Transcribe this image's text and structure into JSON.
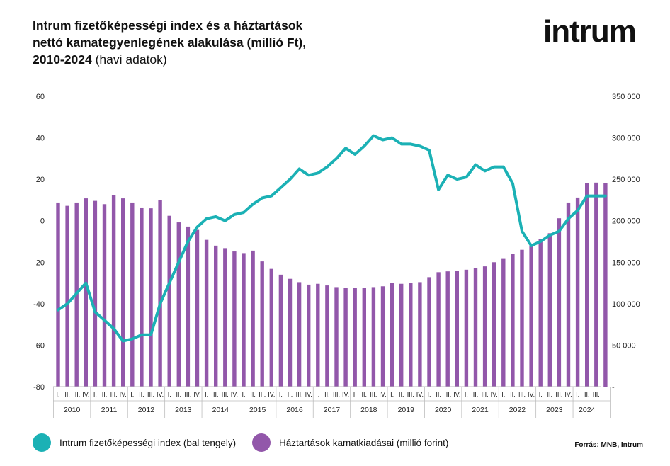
{
  "title": {
    "line1": "Intrum fizetőképességi index és a háztartások",
    "line2": "nettó kamategyenlegének alakulása (millió Ft),",
    "line3_bold": "2010-2024",
    "line3_normal": "(havi adatok)"
  },
  "logo": "intrum",
  "legend": {
    "line_label": "Intrum fizetőképességi index (bal tengely)",
    "bar_label": "Háztartások kamatkiadásai (millió forint)"
  },
  "source": "Forrás: MNB, Intrum",
  "colors": {
    "line": "#1bb1b5",
    "bar": "#9257aa",
    "axis": "#bdbdbd"
  },
  "chart_data": {
    "type": "bar+line",
    "left_axis": {
      "ylim": [
        -80,
        60
      ],
      "ticks": [
        "60",
        "40",
        "20",
        "0",
        "-20",
        "-40",
        "-60",
        "-80"
      ]
    },
    "right_axis": {
      "ylim": [
        0,
        350000
      ],
      "ticks": [
        "350 000",
        "300 000",
        "250 000",
        "200 000",
        "150 000",
        "100 000",
        "50 000",
        "-"
      ]
    },
    "quarters": [
      "I.",
      "II.",
      "III.",
      "IV."
    ],
    "years": [
      "2010",
      "2011",
      "2012",
      "2013",
      "2014",
      "2015",
      "2016",
      "2017",
      "2018",
      "2019",
      "2020",
      "2021",
      "2022",
      "2023",
      "2024"
    ],
    "x_labels_2024": [
      "I.",
      "II.",
      "III."
    ],
    "series": [
      {
        "name": "Háztartások kamatkiadásai (millió forint)",
        "axis": "right",
        "type": "bar",
        "values": [
          222000,
          218000,
          222000,
          227000,
          224000,
          220000,
          231000,
          227000,
          222000,
          216000,
          215000,
          225000,
          206000,
          198000,
          193000,
          189000,
          177000,
          170000,
          167000,
          163000,
          161000,
          164000,
          151000,
          142000,
          135000,
          130000,
          126000,
          123000,
          124000,
          122000,
          120000,
          119000,
          119000,
          119000,
          120000,
          121000,
          125000,
          124000,
          125000,
          126000,
          132000,
          138000,
          139000,
          140000,
          141000,
          143000,
          145000,
          150000,
          154000,
          160000,
          165000,
          170000,
          178000,
          185000,
          203000,
          222000,
          228000,
          245000,
          246000,
          245000
        ]
      },
      {
        "name": "Intrum fizetőképességi index (bal tengely)",
        "axis": "left",
        "type": "line",
        "values": [
          -43,
          -40,
          -35,
          -30,
          -44,
          -48,
          -52,
          -58,
          -57,
          -55,
          -55,
          -40,
          -30,
          -20,
          -10,
          -3,
          1,
          2,
          0,
          3,
          4,
          8,
          11,
          12,
          16,
          20,
          25,
          22,
          23,
          26,
          30,
          35,
          32,
          36,
          41,
          39,
          40,
          37,
          37,
          36,
          34,
          15,
          22,
          20,
          21,
          27,
          24,
          26,
          26,
          18,
          -5,
          -12,
          -10,
          -7,
          -5,
          1,
          5,
          12,
          12,
          12
        ]
      }
    ]
  }
}
